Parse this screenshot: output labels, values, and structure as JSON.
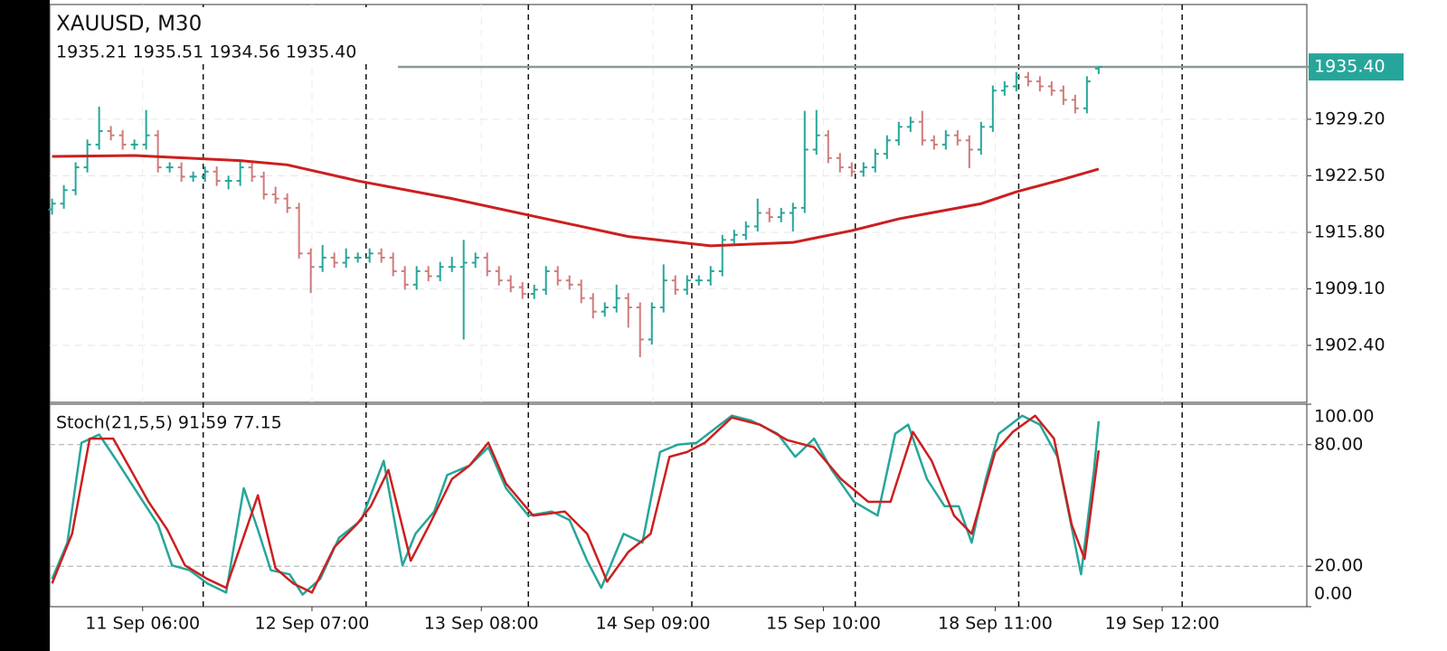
{
  "chart_data": {
    "type": "ohlc",
    "title": "XAUUSD, M30",
    "ohlc_label": "1935.21 1935.51 1934.56 1935.40",
    "up_color": "#26a69a",
    "down_color": "#cf7b7b",
    "ohlc": [
      [
        1918.5,
        1919.8,
        1917.9,
        1919.2
      ],
      [
        1919.2,
        1921.4,
        1918.6,
        1920.8
      ],
      [
        1920.8,
        1924.1,
        1920.2,
        1923.5
      ],
      [
        1923.5,
        1926.8,
        1922.9,
        1926.2
      ],
      [
        1926.2,
        1930.7,
        1925.6,
        1927.8
      ],
      [
        1927.8,
        1928.4,
        1926.7,
        1927.3
      ],
      [
        1927.3,
        1927.9,
        1925.6,
        1926.2
      ],
      [
        1926.2,
        1926.8,
        1925.6,
        1926.2
      ],
      [
        1926.2,
        1930.3,
        1925.6,
        1927.3
      ],
      [
        1927.3,
        1927.9,
        1922.9,
        1923.5
      ],
      [
        1923.5,
        1924.1,
        1922.9,
        1923.5
      ],
      [
        1923.5,
        1924.1,
        1921.8,
        1922.4
      ],
      [
        1922.4,
        1923.0,
        1921.8,
        1922.4
      ],
      [
        1922.4,
        1923.6,
        1921.8,
        1923.0
      ],
      [
        1923.0,
        1923.6,
        1921.3,
        1921.9
      ],
      [
        1921.9,
        1922.5,
        1920.9,
        1921.9
      ],
      [
        1921.9,
        1924.4,
        1921.3,
        1923.5
      ],
      [
        1923.5,
        1924.1,
        1921.8,
        1922.4
      ],
      [
        1922.4,
        1923.0,
        1919.7,
        1920.3
      ],
      [
        1920.3,
        1921.2,
        1919.2,
        1919.8
      ],
      [
        1919.8,
        1920.4,
        1918.1,
        1918.7
      ],
      [
        1918.7,
        1919.3,
        1912.7,
        1913.3
      ],
      [
        1913.3,
        1913.9,
        1908.6,
        1911.7
      ],
      [
        1911.7,
        1914.3,
        1911.1,
        1912.8
      ],
      [
        1912.8,
        1913.4,
        1911.6,
        1912.2
      ],
      [
        1912.2,
        1913.9,
        1911.6,
        1912.8
      ],
      [
        1912.8,
        1913.4,
        1912.2,
        1912.8
      ],
      [
        1912.8,
        1913.9,
        1912.2,
        1913.3
      ],
      [
        1913.3,
        1913.9,
        1912.2,
        1912.8
      ],
      [
        1912.8,
        1913.4,
        1910.6,
        1911.2
      ],
      [
        1911.2,
        1911.8,
        1909.0,
        1909.6
      ],
      [
        1909.6,
        1911.8,
        1909.0,
        1911.2
      ],
      [
        1911.2,
        1911.8,
        1910.0,
        1910.6
      ],
      [
        1910.6,
        1912.3,
        1910.0,
        1911.7
      ],
      [
        1911.7,
        1912.9,
        1911.1,
        1911.7
      ],
      [
        1911.7,
        1914.9,
        1903.1,
        1912.2
      ],
      [
        1912.2,
        1913.4,
        1911.6,
        1912.8
      ],
      [
        1912.8,
        1913.4,
        1910.6,
        1911.2
      ],
      [
        1911.2,
        1911.8,
        1909.5,
        1910.1
      ],
      [
        1910.1,
        1910.7,
        1908.7,
        1909.3
      ],
      [
        1909.3,
        1909.9,
        1907.9,
        1908.5
      ],
      [
        1908.5,
        1909.6,
        1907.9,
        1909.0
      ],
      [
        1909.0,
        1911.8,
        1908.4,
        1911.2
      ],
      [
        1911.2,
        1911.8,
        1909.5,
        1910.1
      ],
      [
        1910.1,
        1910.7,
        1909.0,
        1909.6
      ],
      [
        1909.6,
        1910.2,
        1907.4,
        1908.0
      ],
      [
        1908.0,
        1908.6,
        1905.6,
        1906.4
      ],
      [
        1906.4,
        1907.5,
        1905.8,
        1906.9
      ],
      [
        1906.9,
        1909.6,
        1906.3,
        1908.0
      ],
      [
        1908.0,
        1908.6,
        1904.5,
        1906.9
      ],
      [
        1906.9,
        1907.5,
        1901.0,
        1903.1
      ],
      [
        1903.1,
        1907.5,
        1902.5,
        1906.9
      ],
      [
        1906.9,
        1912.0,
        1906.3,
        1910.1
      ],
      [
        1910.1,
        1910.7,
        1908.4,
        1909.0
      ],
      [
        1909.0,
        1910.7,
        1908.4,
        1910.1
      ],
      [
        1910.1,
        1910.7,
        1909.5,
        1910.1
      ],
      [
        1910.1,
        1911.8,
        1909.5,
        1911.2
      ],
      [
        1911.2,
        1915.5,
        1910.6,
        1914.9
      ],
      [
        1914.9,
        1916.1,
        1914.3,
        1915.5
      ],
      [
        1915.5,
        1917.1,
        1914.9,
        1916.5
      ],
      [
        1916.5,
        1919.8,
        1915.9,
        1918.1
      ],
      [
        1918.1,
        1918.7,
        1917.0,
        1917.6
      ],
      [
        1917.6,
        1918.7,
        1917.0,
        1918.1
      ],
      [
        1918.1,
        1919.3,
        1915.9,
        1918.7
      ],
      [
        1918.7,
        1930.2,
        1918.1,
        1925.6
      ],
      [
        1925.6,
        1930.3,
        1925.0,
        1927.3
      ],
      [
        1927.3,
        1927.9,
        1924.0,
        1924.6
      ],
      [
        1924.6,
        1925.2,
        1922.9,
        1923.5
      ],
      [
        1923.5,
        1924.1,
        1922.4,
        1923.0
      ],
      [
        1923.0,
        1924.1,
        1922.4,
        1923.5
      ],
      [
        1923.5,
        1925.7,
        1922.9,
        1925.1
      ],
      [
        1925.1,
        1927.3,
        1924.5,
        1926.7
      ],
      [
        1926.7,
        1928.9,
        1926.1,
        1928.3
      ],
      [
        1928.3,
        1929.5,
        1927.7,
        1928.9
      ],
      [
        1928.9,
        1930.2,
        1926.1,
        1926.7
      ],
      [
        1926.7,
        1927.3,
        1925.6,
        1926.2
      ],
      [
        1926.2,
        1927.9,
        1925.6,
        1927.3
      ],
      [
        1927.3,
        1927.9,
        1926.1,
        1926.7
      ],
      [
        1926.7,
        1927.3,
        1923.4,
        1925.6
      ],
      [
        1925.6,
        1928.9,
        1925.0,
        1928.3
      ],
      [
        1928.3,
        1933.2,
        1927.7,
        1932.6
      ],
      [
        1932.6,
        1933.7,
        1932.0,
        1933.1
      ],
      [
        1933.1,
        1934.8,
        1932.5,
        1934.2
      ],
      [
        1934.2,
        1934.8,
        1933.1,
        1933.7
      ],
      [
        1933.7,
        1934.3,
        1932.5,
        1933.1
      ],
      [
        1933.1,
        1933.7,
        1932.0,
        1932.6
      ],
      [
        1932.6,
        1933.2,
        1930.9,
        1931.5
      ],
      [
        1931.5,
        1932.1,
        1929.9,
        1930.5
      ],
      [
        1930.5,
        1934.3,
        1929.9,
        1933.7
      ],
      [
        1935.21,
        1935.51,
        1934.56,
        1935.4
      ]
    ],
    "ma": {
      "color": "#cc1f1f",
      "x": [
        0,
        7,
        16,
        20,
        26,
        34,
        42,
        49,
        56,
        63,
        68,
        72,
        79,
        82,
        86,
        89
      ],
      "values": [
        1924.8,
        1924.9,
        1924.3,
        1923.8,
        1921.9,
        1919.8,
        1917.4,
        1915.3,
        1914.2,
        1914.6,
        1916.0,
        1917.4,
        1919.2,
        1920.6,
        1922.1,
        1923.3
      ]
    },
    "price_label": {
      "value": 1935.4,
      "label": "1935.40"
    },
    "xlim": [
      -0.2,
      106.7
    ],
    "ylim": [
      1895.65,
      1942.8
    ],
    "yticks": [
      {
        "value": 1929.2,
        "label": "1929.20"
      },
      {
        "value": 1922.5,
        "label": "1922.50"
      },
      {
        "value": 1915.8,
        "label": "1915.80"
      },
      {
        "value": 1909.1,
        "label": "1909.10"
      },
      {
        "value": 1902.4,
        "label": "1902.40"
      }
    ],
    "xticks": [
      {
        "value": 7.7,
        "label": "11 Sep 06:00"
      },
      {
        "value": 22.1,
        "label": "12 Sep 07:00"
      },
      {
        "value": 36.5,
        "label": "13 Sep 08:00"
      },
      {
        "value": 51.1,
        "label": "14 Sep 09:00"
      },
      {
        "value": 65.6,
        "label": "15 Sep 10:00"
      },
      {
        "value": 80.2,
        "label": "18 Sep 11:00"
      },
      {
        "value": 94.4,
        "label": "19 Sep 12:00"
      }
    ],
    "separators": [
      12.85,
      26.7,
      40.5,
      54.4,
      68.3,
      82.2,
      96.1
    ],
    "stoch": {
      "label": "Stoch(21,5,5) 91.59 77.15",
      "ylim": [
        0,
        100
      ],
      "yticks": [
        {
          "value": 100,
          "label": "100.00"
        },
        {
          "value": 80,
          "label": "80.00"
        },
        {
          "value": 20,
          "label": "20.00"
        },
        {
          "value": 0,
          "label": "0.00"
        }
      ],
      "levels": [
        80,
        20
      ],
      "series": [
        {
          "color": "#26a69a",
          "x": [
            0,
            1.3,
            2.5,
            4,
            5.5,
            7.5,
            9,
            10.2,
            11.7,
            13.2,
            14.8,
            16.3,
            17.5,
            18.6,
            20.2,
            21.3,
            22.8,
            24.4,
            26.3,
            28.2,
            29.8,
            30.9,
            32.5,
            33.6,
            35.5,
            37.1,
            38.6,
            40.5,
            42.5,
            44,
            45.5,
            46.7,
            48.6,
            50.2,
            51.7,
            53.2,
            54.8,
            56.3,
            57.8,
            59.4,
            61.7,
            63.2,
            64.8,
            66.3,
            68.2,
            70.2,
            71.7,
            72.8,
            74.4,
            75.9,
            77.1,
            78.2,
            79.4,
            80.5,
            82.5,
            84,
            85.5,
            87.5,
            88.6,
            89
          ],
          "values": [
            13.7,
            31.6,
            80.9,
            85,
            72,
            54,
            40.6,
            20.4,
            18,
            11.5,
            7,
            58.5,
            38,
            18,
            16,
            6,
            13.7,
            34,
            42.8,
            72,
            20.4,
            36,
            47,
            65,
            69.7,
            78.7,
            58.5,
            45,
            47,
            42.8,
            22.7,
            9.3,
            36,
            31.6,
            76.4,
            80,
            80.9,
            87.6,
            94.3,
            92,
            85.4,
            74,
            83,
            67.5,
            51.8,
            45,
            85.4,
            89.9,
            63,
            49.6,
            49.6,
            31.6,
            63,
            85.4,
            94.3,
            89.9,
            74,
            16,
            67.5,
            91.59
          ]
        },
        {
          "color": "#cc1f1f",
          "x": [
            0,
            1.7,
            3.2,
            5.2,
            6.7,
            8.2,
            9.8,
            11.3,
            13.2,
            14.8,
            17.5,
            19,
            20.5,
            22.1,
            24,
            25.9,
            27.1,
            28.6,
            30.5,
            32.1,
            34,
            35.5,
            37.1,
            38.6,
            40.9,
            43.6,
            45.5,
            47.2,
            49,
            50.9,
            52.5,
            54,
            55.5,
            57.8,
            60.2,
            62.5,
            64.8,
            67.1,
            69.4,
            71.3,
            73.2,
            74.8,
            76.7,
            78.2,
            80.2,
            81.7,
            83.6,
            85.2,
            86.7,
            87.8,
            89
          ],
          "values": [
            11.5,
            36,
            83,
            83,
            67.5,
            51.8,
            38,
            20.4,
            13.7,
            9.3,
            55,
            19,
            11.5,
            7,
            29.4,
            40.6,
            49.6,
            67.5,
            22.7,
            40.6,
            63,
            69.7,
            81,
            60.8,
            45,
            47,
            36,
            12.4,
            27,
            36,
            74,
            76.4,
            80.9,
            93.4,
            89.9,
            82.3,
            78.7,
            63,
            51.8,
            51.8,
            86.3,
            72,
            45,
            36,
            76.4,
            86.3,
            94.3,
            83,
            40.6,
            23.6,
            77.15
          ]
        }
      ]
    }
  }
}
